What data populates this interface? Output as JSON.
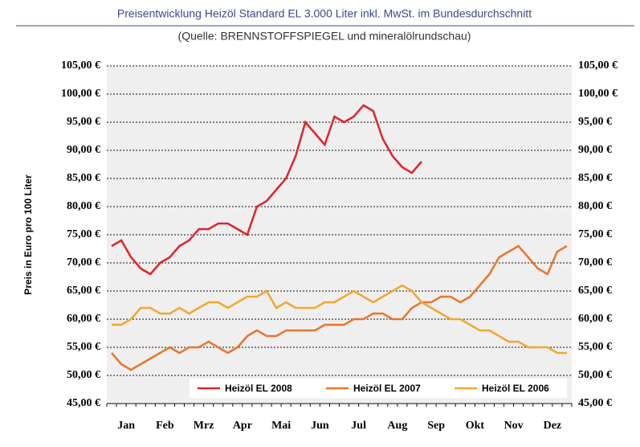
{
  "chart_data": {
    "type": "line",
    "title": "Preisentwicklung Heizöl Standard EL 3.000 Liter inkl. MwSt. im Bundesdurchschnitt",
    "subtitle": "(Quelle: BRENNSTOFFSPIEGEL und mineralölrundschau)",
    "y_label": "Preis in Euro pro 100 Liter",
    "categories": [
      "Jan",
      null,
      null,
      null,
      "Feb",
      null,
      null,
      null,
      "Mrz",
      null,
      null,
      null,
      "Apr",
      null,
      null,
      null,
      "Mai",
      null,
      null,
      null,
      "Jun",
      null,
      null,
      null,
      "Jul",
      null,
      null,
      null,
      "Aug",
      null,
      null,
      null,
      "Sep",
      null,
      null,
      null,
      "Okt",
      null,
      null,
      null,
      "Nov",
      null,
      null,
      null,
      "Dez",
      null,
      null,
      null
    ],
    "series": [
      {
        "name": "Heizöl EL 2008",
        "color": "#e0242c",
        "values": [
          73,
          74,
          71,
          69,
          68,
          70,
          71,
          73,
          74,
          76,
          76,
          77,
          77,
          76,
          75,
          80,
          81,
          83,
          85,
          89,
          95,
          93,
          91,
          96,
          95,
          96,
          98,
          97,
          92,
          89,
          87,
          86,
          88,
          null,
          null,
          null,
          null,
          null,
          null,
          null,
          null,
          null,
          null,
          null,
          null,
          null,
          null,
          null
        ]
      },
      {
        "name": "Heizöl EL 2007",
        "color": "#e8762c",
        "values": [
          54,
          52,
          51,
          52,
          53,
          54,
          55,
          54,
          55,
          55,
          56,
          55,
          54,
          55,
          57,
          58,
          57,
          57,
          58,
          58,
          58,
          58,
          59,
          59,
          59,
          60,
          60,
          61,
          61,
          60,
          60,
          62,
          63,
          63,
          64,
          64,
          63,
          64,
          66,
          68,
          71,
          72,
          73,
          71,
          69,
          68,
          72,
          73
        ]
      },
      {
        "name": "Heizöl EL 2006",
        "color": "#f0a830",
        "values": [
          59,
          59,
          60,
          62,
          62,
          61,
          61,
          62,
          61,
          62,
          63,
          63,
          62,
          63,
          64,
          64,
          65,
          62,
          63,
          62,
          62,
          62,
          63,
          63,
          64,
          65,
          64,
          63,
          64,
          65,
          66,
          65,
          63,
          62,
          61,
          60,
          60,
          59,
          58,
          58,
          57,
          56,
          56,
          55,
          55,
          55,
          54,
          54
        ]
      }
    ],
    "ylim": [
      45,
      105
    ],
    "yticks": [
      {
        "value": 45,
        "label": "45,00 €"
      },
      {
        "value": 50,
        "label": "50,00 €"
      },
      {
        "value": 55,
        "label": "55,00 €"
      },
      {
        "value": 60,
        "label": "60,00 €"
      },
      {
        "value": 65,
        "label": "65,00 €"
      },
      {
        "value": 70,
        "label": "70,00 €"
      },
      {
        "value": 75,
        "label": "75,00 €"
      },
      {
        "value": 80,
        "label": "80,00 €"
      },
      {
        "value": 85,
        "label": "85,00 €"
      },
      {
        "value": 90,
        "label": "90,00 €"
      },
      {
        "value": 95,
        "label": "95,00 €"
      },
      {
        "value": 100,
        "label": "100,00 €"
      },
      {
        "value": 105,
        "label": "105,00 €"
      }
    ],
    "grid": true
  }
}
